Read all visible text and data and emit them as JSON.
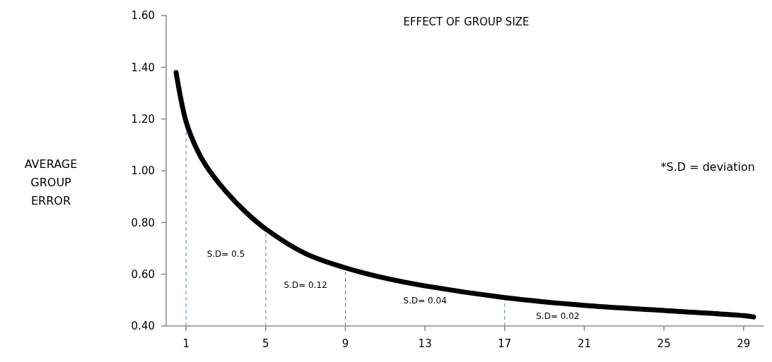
{
  "chart_data": {
    "type": "line",
    "title": "EFFECT OF GROUP SIZE",
    "ylabel": "AVERAGE GROUP ERROR",
    "x": [
      0.5,
      1,
      1.5,
      2,
      3,
      4,
      5,
      7,
      9,
      11,
      13,
      17,
      21,
      25,
      29,
      29.5
    ],
    "series": [
      {
        "color": "#000000",
        "values": [
          1.38,
          1.19,
          1.09,
          1.02,
          0.92,
          0.84,
          0.775,
          0.68,
          0.625,
          0.585,
          0.555,
          0.51,
          0.48,
          0.46,
          0.44,
          0.435
        ]
      }
    ],
    "xlim": [
      0,
      30
    ],
    "xticks": [
      1,
      5,
      9,
      13,
      17,
      21,
      25,
      29
    ],
    "ylim": [
      0.4,
      1.6
    ],
    "yticks": [
      {
        "value": 0.4,
        "label": "0.40"
      },
      {
        "value": 0.6,
        "label": "0.60"
      },
      {
        "value": 0.8,
        "label": "0.80"
      },
      {
        "value": 1,
        "label": "1.00"
      },
      {
        "value": 1.2,
        "label": "1.20"
      },
      {
        "value": 1.4,
        "label": "1.40"
      },
      {
        "value": 1.6,
        "label": "1.60"
      }
    ],
    "ref_lines": [
      {
        "axis": "x",
        "value": 1,
        "color": "#4f81bd",
        "line_style": "dashed"
      },
      {
        "axis": "x",
        "value": 5,
        "color": "#4f81bd",
        "line_style": "dashed"
      },
      {
        "axis": "x",
        "value": 9,
        "color": "#4f81bd",
        "line_style": "dashed"
      },
      {
        "axis": "x",
        "value": 17,
        "color": "#4f81bd",
        "line_style": "dashed"
      }
    ],
    "annotations": [
      "S.D= 0.5",
      "S.D= 0.12",
      "S.D= 0.04",
      "S.D= 0.02",
      "*S.D = deviation"
    ],
    "grid": false,
    "marker": "none",
    "line_style": "solid"
  }
}
